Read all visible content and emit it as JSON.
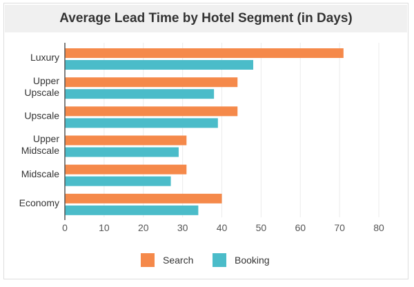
{
  "chart_data": {
    "type": "bar",
    "orientation": "horizontal",
    "title": "Average Lead Time by Hotel Segment (in Days)",
    "categories": [
      [
        "Luxury"
      ],
      [
        "Upper",
        "Upscale"
      ],
      [
        "Upscale"
      ],
      [
        "Upper",
        "Midscale"
      ],
      [
        "Midscale"
      ],
      [
        "Economy"
      ]
    ],
    "series": [
      {
        "name": "Search",
        "color": "#f5894a",
        "values": [
          71,
          44,
          44,
          31,
          31,
          40
        ]
      },
      {
        "name": "Booking",
        "color": "#4bbcc9",
        "values": [
          48,
          38,
          39,
          29,
          27,
          34
        ]
      }
    ],
    "xlim": [
      0,
      80
    ],
    "xticks": [
      0,
      10,
      20,
      30,
      40,
      50,
      60,
      70,
      80
    ],
    "grid": true,
    "legend": "bottom"
  }
}
